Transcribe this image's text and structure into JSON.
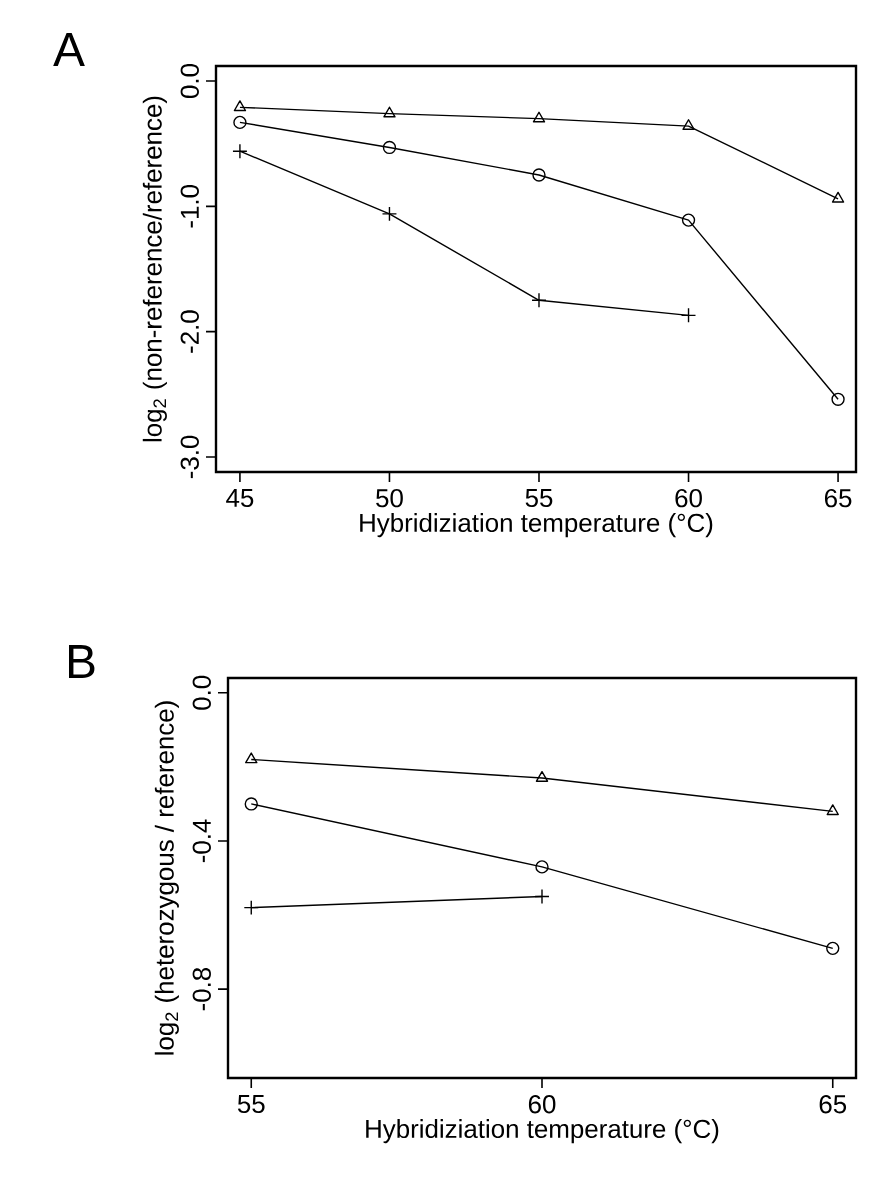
{
  "chart_data": [
    {
      "type": "line",
      "title": "A",
      "xlabel": "Hybridiziation temperature (°C)",
      "ylabel": "log$_{2}$ (non-reference/reference)",
      "x": [
        45,
        50,
        55,
        60,
        65
      ],
      "xlim": [
        44.2,
        65.6
      ],
      "xticks": [
        45,
        50,
        55,
        60,
        65
      ],
      "ylim": [
        -3.12,
        0.12
      ],
      "yticks": [
        {
          "value": 0,
          "label": "0.0"
        },
        {
          "value": -1,
          "label": "-1.0"
        },
        {
          "value": -2,
          "label": "-2.0"
        },
        {
          "value": -3,
          "label": "-3.0"
        }
      ],
      "line_style": "solid",
      "series": [
        {
          "color": "#000000",
          "marker": "triangle",
          "values": [
            -0.21,
            -0.26,
            -0.3,
            -0.36,
            -0.94
          ]
        },
        {
          "color": "#000000",
          "marker": "circle",
          "values": [
            -0.33,
            -0.53,
            -0.75,
            -1.11,
            -2.54
          ]
        },
        {
          "color": "#000000",
          "marker": "cross",
          "values": [
            -0.56,
            -1.06,
            -1.75,
            -1.87,
            null
          ]
        }
      ]
    },
    {
      "type": "line",
      "title": "B",
      "xlabel": "Hybridiziation temperature (°C)",
      "ylabel": "log$_{2}$ (heterozygous / reference)",
      "x": [
        55,
        60,
        65
      ],
      "xlim": [
        54.6,
        65.4
      ],
      "xticks": [
        55,
        60,
        65
      ],
      "ylim": [
        -1.04,
        0.04
      ],
      "yticks": [
        {
          "value": 0,
          "label": "0.0"
        },
        {
          "value": -0.4,
          "label": "-0.4"
        },
        {
          "value": -0.8,
          "label": "-0.8"
        }
      ],
      "line_style": "solid",
      "series": [
        {
          "color": "#000000",
          "marker": "triangle",
          "values": [
            -0.18,
            -0.23,
            -0.32
          ]
        },
        {
          "color": "#000000",
          "marker": "circle",
          "values": [
            -0.3,
            -0.47,
            -0.69
          ]
        },
        {
          "color": "#000000",
          "marker": "cross",
          "values": [
            -0.58,
            -0.55,
            null
          ]
        }
      ]
    }
  ]
}
